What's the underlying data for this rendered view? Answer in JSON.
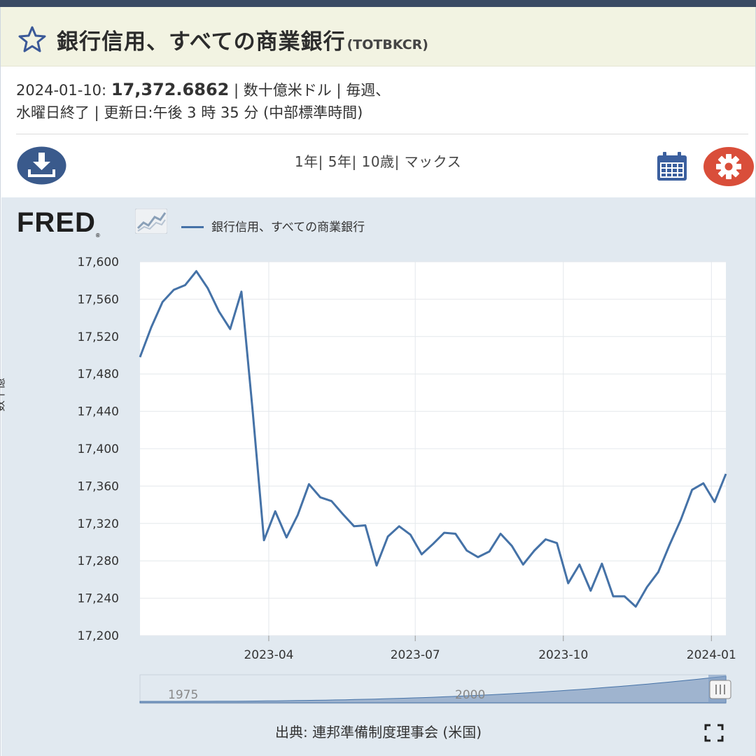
{
  "header": {
    "title": "銀行信用、すべての商業銀行",
    "series_id": "(TOTBKCR)"
  },
  "meta": {
    "date": "2024-01-10:",
    "value": "17,372.6862",
    "line1_rest": "| 数十億米ドル | 毎週、",
    "line2": "水曜日終了 | 更新日:午後 3 時 35 分 (中部標準時間)"
  },
  "toolbar": {
    "range_1y": "1年",
    "range_5y": "5年",
    "range_10y": "10歳",
    "range_max": "マックス",
    "pipe": "|"
  },
  "chart": {
    "logo": "FRED",
    "legend_label": "銀行信用、すべての商業銀行",
    "ylabel_partial": "数十億",
    "navigator_labels": [
      "1975",
      "2000"
    ],
    "source": "出典: 連邦準備制度理事会 (米国)"
  },
  "colors": {
    "line": "#4572a7",
    "settings": "#d94e3a",
    "accent": "#3b5998"
  },
  "chart_data": {
    "type": "line",
    "title": "",
    "xlabel": "",
    "ylabel": "数十億米ドル",
    "x_ticks": [
      "2023-04",
      "2023-07",
      "2023-10",
      "2024-01"
    ],
    "y_ticks": [
      17200,
      17240,
      17280,
      17320,
      17360,
      17400,
      17440,
      17480,
      17520,
      17560,
      17600
    ],
    "ylim": [
      17200,
      17600
    ],
    "xlim": [
      "2023-01-11",
      "2024-01-10"
    ],
    "grid": true,
    "series": [
      {
        "name": "銀行信用、すべての商業銀行",
        "x": [
          "2023-01-11",
          "2023-01-18",
          "2023-01-25",
          "2023-02-01",
          "2023-02-08",
          "2023-02-15",
          "2023-02-22",
          "2023-03-01",
          "2023-03-08",
          "2023-03-15",
          "2023-03-22",
          "2023-03-29",
          "2023-04-05",
          "2023-04-12",
          "2023-04-19",
          "2023-04-26",
          "2023-05-03",
          "2023-05-10",
          "2023-05-17",
          "2023-05-24",
          "2023-05-31",
          "2023-06-07",
          "2023-06-14",
          "2023-06-21",
          "2023-06-28",
          "2023-07-05",
          "2023-07-12",
          "2023-07-19",
          "2023-07-26",
          "2023-08-02",
          "2023-08-09",
          "2023-08-16",
          "2023-08-23",
          "2023-08-30",
          "2023-09-06",
          "2023-09-13",
          "2023-09-20",
          "2023-09-27",
          "2023-10-04",
          "2023-10-11",
          "2023-10-18",
          "2023-10-25",
          "2023-11-01",
          "2023-11-08",
          "2023-11-15",
          "2023-11-22",
          "2023-11-29",
          "2023-12-06",
          "2023-12-13",
          "2023-12-20",
          "2023-12-27",
          "2024-01-03",
          "2024-01-10"
        ],
        "values": [
          17498,
          17530,
          17557,
          17570,
          17575,
          17590,
          17572,
          17547,
          17528,
          17568,
          17440,
          17302,
          17333,
          17305,
          17329,
          17362,
          17348,
          17344,
          17330,
          17317,
          17318,
          17275,
          17306,
          17317,
          17308,
          17287,
          17298,
          17310,
          17309,
          17291,
          17284,
          17290,
          17309,
          17296,
          17276,
          17291,
          17303,
          17299,
          17256,
          17276,
          17248,
          17277,
          17242,
          17242,
          17231,
          17252,
          17268,
          17297,
          17324,
          17356,
          17363,
          17343,
          17373
        ]
      }
    ]
  }
}
